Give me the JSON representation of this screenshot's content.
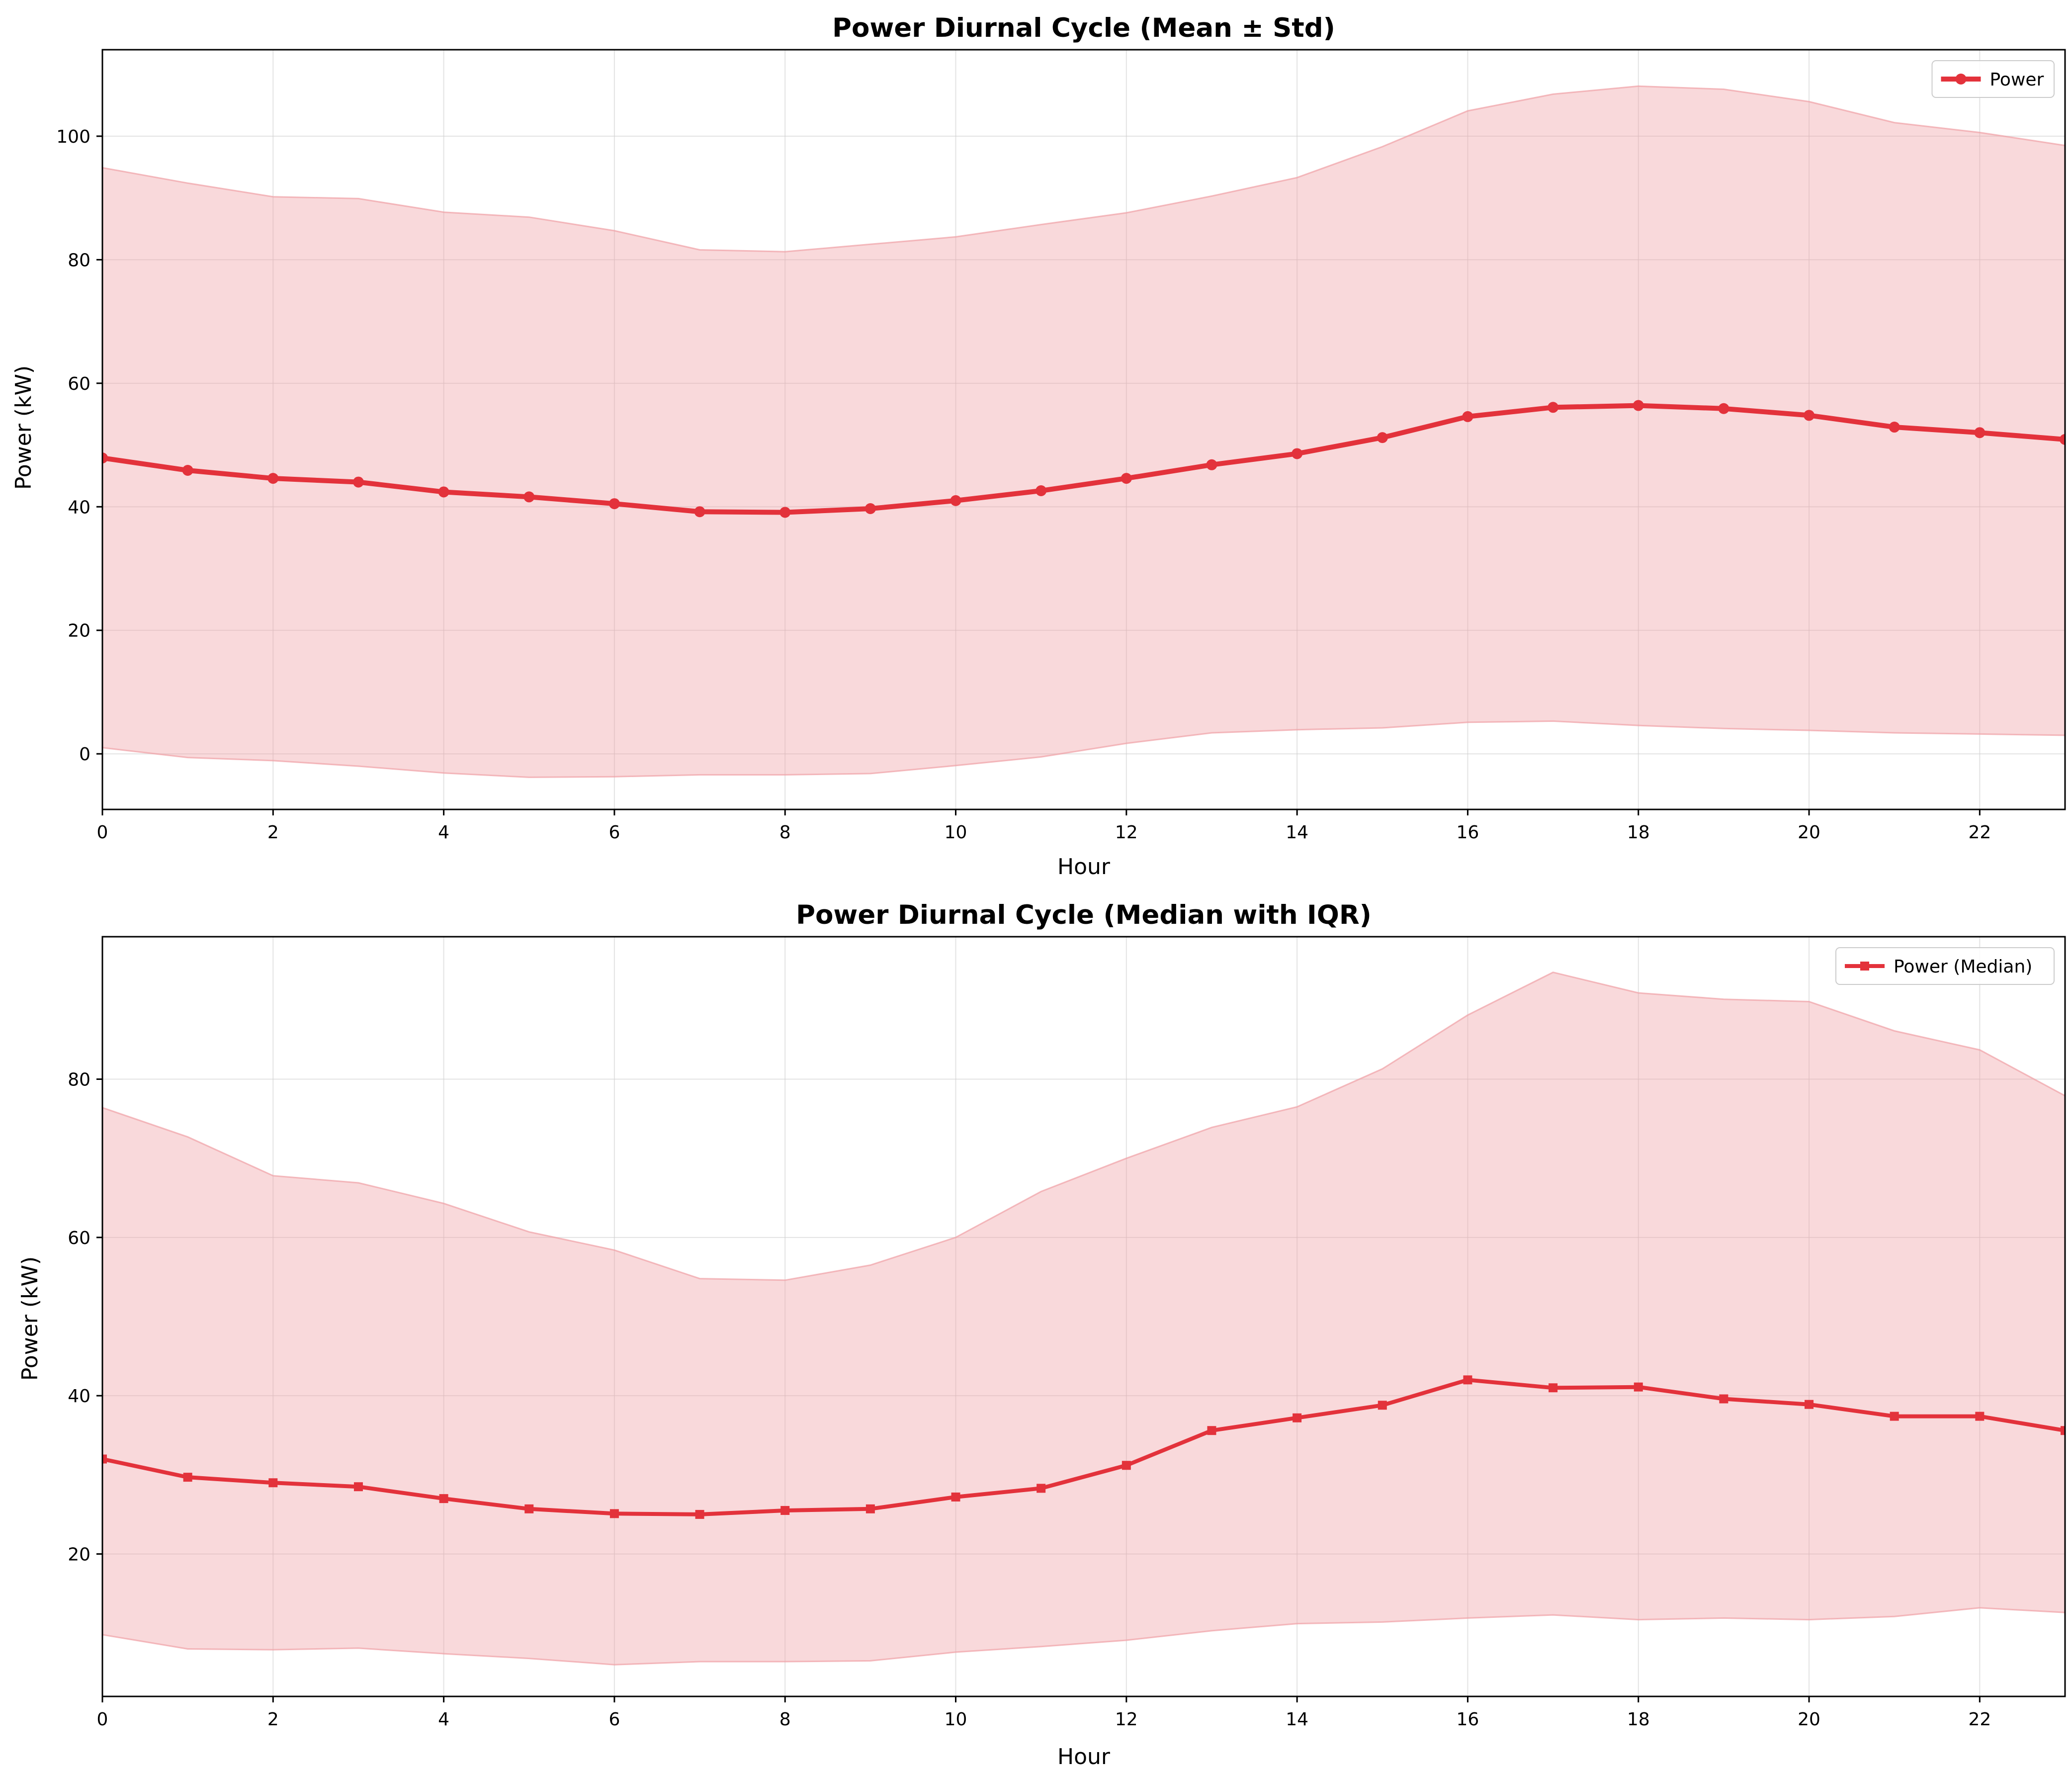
{
  "colors": {
    "series": "#e3323b",
    "band": "#f0a0a5",
    "grid": "#d0d0d0",
    "axis": "#000000"
  },
  "chart_data": [
    {
      "type": "line",
      "title": "Power Diurnal Cycle (Mean ± Std)",
      "xlabel": "Hour",
      "ylabel": "Power (kW)",
      "xlim": [
        0,
        23
      ],
      "ylim": [
        -9,
        114
      ],
      "x_ticks": [
        0,
        2,
        4,
        6,
        8,
        10,
        12,
        14,
        16,
        18,
        20,
        22
      ],
      "y_ticks": [
        0,
        20,
        40,
        60,
        80,
        100
      ],
      "grid": true,
      "legend_position": "upper right",
      "marker": "circle",
      "x": [
        0,
        1,
        2,
        3,
        4,
        5,
        6,
        7,
        8,
        9,
        10,
        11,
        12,
        13,
        14,
        15,
        16,
        17,
        18,
        19,
        20,
        21,
        22,
        23
      ],
      "series": [
        {
          "name": "Power",
          "values": [
            47.9,
            45.9,
            44.6,
            44.0,
            42.4,
            41.6,
            40.5,
            39.2,
            39.1,
            39.7,
            41.0,
            42.6,
            44.6,
            46.8,
            48.6,
            51.2,
            54.6,
            56.1,
            56.4,
            55.9,
            54.8,
            52.9,
            52.0,
            50.9
          ]
        }
      ],
      "band": {
        "lower": [
          1.0,
          -0.6,
          -1.1,
          -2.0,
          -3.1,
          -3.8,
          -3.7,
          -3.4,
          -3.4,
          -3.2,
          -1.9,
          -0.5,
          1.7,
          3.4,
          3.9,
          4.2,
          5.1,
          5.3,
          4.6,
          4.1,
          3.8,
          3.4,
          3.2,
          3.0
        ],
        "upper": [
          94.9,
          92.4,
          90.2,
          89.9,
          87.7,
          86.9,
          84.7,
          81.6,
          81.3,
          82.5,
          83.7,
          85.7,
          87.6,
          90.3,
          93.3,
          98.3,
          104.1,
          106.8,
          108.1,
          107.6,
          105.6,
          102.2,
          100.6,
          98.5
        ]
      }
    },
    {
      "type": "line",
      "title": "Power Diurnal Cycle (Median with IQR)",
      "xlabel": "Hour",
      "ylabel": "Power (kW)",
      "xlim": [
        0,
        23
      ],
      "ylim": [
        2,
        98
      ],
      "x_ticks": [
        0,
        2,
        4,
        6,
        8,
        10,
        12,
        14,
        16,
        18,
        20,
        22
      ],
      "y_ticks": [
        20,
        40,
        60,
        80
      ],
      "grid": true,
      "legend_position": "upper right",
      "marker": "square",
      "x": [
        0,
        1,
        2,
        3,
        4,
        5,
        6,
        7,
        8,
        9,
        10,
        11,
        12,
        13,
        14,
        15,
        16,
        17,
        18,
        19,
        20,
        21,
        22,
        23
      ],
      "series": [
        {
          "name": "Power (Median)",
          "values": [
            32.0,
            29.7,
            29.0,
            28.5,
            27.0,
            25.7,
            25.1,
            25.0,
            25.5,
            25.7,
            27.2,
            28.3,
            31.2,
            35.6,
            37.2,
            38.8,
            42.0,
            41.0,
            41.1,
            39.6,
            38.9,
            37.4,
            37.4,
            35.6
          ]
        }
      ],
      "band": {
        "lower": [
          9.8,
          8.0,
          7.9,
          8.1,
          7.4,
          6.8,
          6.0,
          6.4,
          6.4,
          6.5,
          7.6,
          8.3,
          9.1,
          10.3,
          11.2,
          11.4,
          11.9,
          12.3,
          11.7,
          11.9,
          11.7,
          12.1,
          13.2,
          12.6
        ],
        "upper": [
          76.4,
          72.7,
          67.8,
          66.9,
          64.3,
          60.7,
          58.4,
          54.8,
          54.6,
          56.5,
          60.0,
          65.8,
          70.0,
          73.9,
          76.5,
          81.3,
          88.1,
          93.5,
          90.9,
          90.1,
          89.8,
          86.1,
          83.7,
          77.9
        ]
      }
    }
  ]
}
